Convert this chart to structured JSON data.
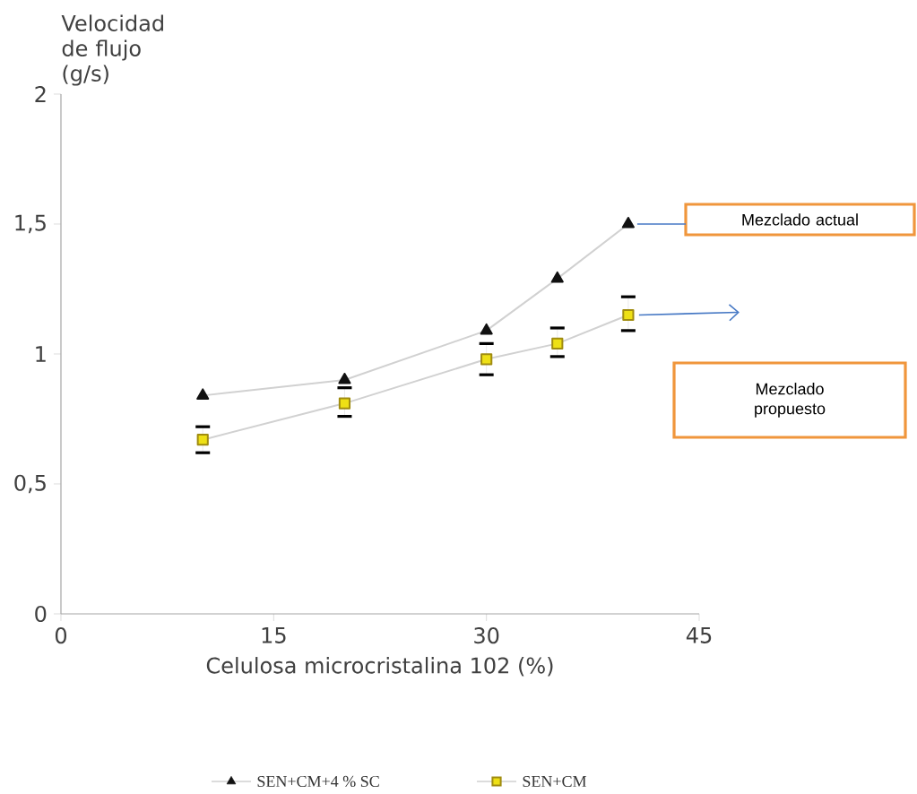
{
  "chart_data": {
    "type": "line",
    "xlabel": "Celulosa microcristalina 102 (%)",
    "ylabel": "Velocidad de flujo (g/s)",
    "x": [
      10,
      20,
      30,
      35,
      40
    ],
    "series": [
      {
        "name": "SEN+CM+4 % SC",
        "color": "#111111",
        "marker": "triangle",
        "values": [
          0.84,
          0.9,
          1.09,
          1.29,
          1.5
        ]
      },
      {
        "name": "SEN+CM",
        "color": "#a08c10",
        "marker": "square",
        "values": [
          0.67,
          0.81,
          0.98,
          1.04,
          1.15
        ],
        "errors": [
          [
            0.62,
            0.72
          ],
          [
            0.76,
            0.87
          ],
          [
            0.92,
            1.04
          ],
          [
            0.99,
            1.1
          ],
          [
            1.09,
            1.22
          ]
        ]
      }
    ],
    "xlim": [
      0,
      45
    ],
    "ylim": [
      0,
      2
    ],
    "xticks": [
      0,
      15,
      30,
      45
    ],
    "yticks": [
      0,
      {
        "value": 0.5,
        "label": "0,5"
      },
      1,
      {
        "value": 1.5,
        "label": "1,5"
      },
      2
    ],
    "legend": "bottom",
    "annotations": [
      "Mezclado actual",
      "Mezclado propuesto"
    ]
  }
}
